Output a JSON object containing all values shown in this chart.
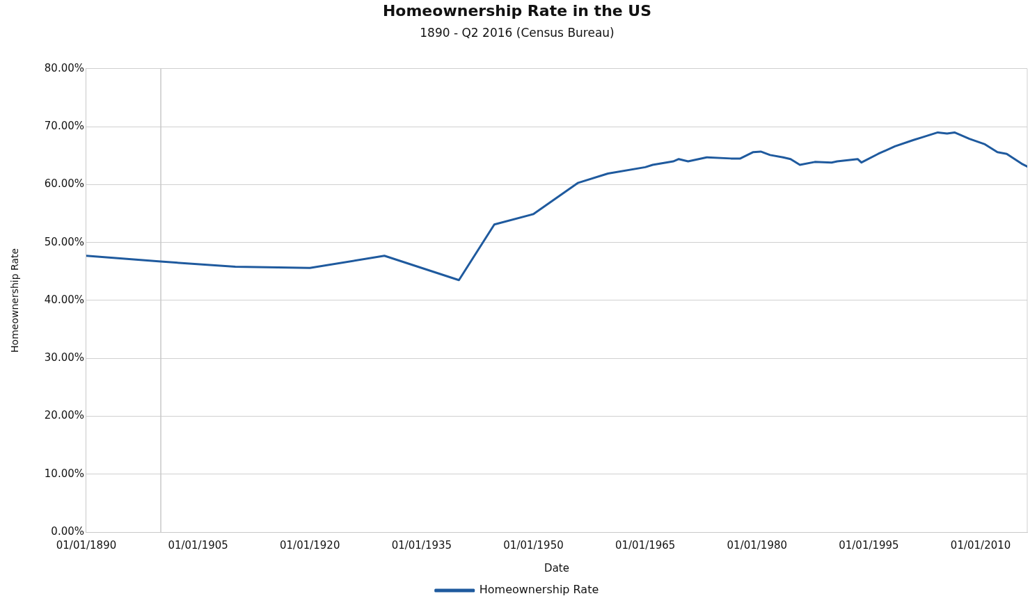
{
  "chart_data": {
    "type": "line",
    "title": "Homeownership Rate in the US",
    "subtitle": "1890 - Q2 2016 (Census Bureau)",
    "xlabel": "Date",
    "ylabel": "Homeownership Rate",
    "x": [
      "1890-01-01",
      "1900-01-01",
      "1910-01-01",
      "1920-01-01",
      "1930-01-01",
      "1940-01-01",
      "1944-10-01",
      "1950-01-01",
      "1956-01-01",
      "1960-01-01",
      "1965-01-01",
      "1966-01-01",
      "1968-10-01",
      "1969-07-01",
      "1970-10-01",
      "1973-04-01",
      "1976-07-01",
      "1977-10-01",
      "1979-07-01",
      "1980-07-01",
      "1981-10-01",
      "1983-07-01",
      "1984-07-01",
      "1985-10-01",
      "1987-10-01",
      "1990-01-01",
      "1990-10-01",
      "1993-07-01",
      "1994-01-01",
      "1996-04-01",
      "1998-07-01",
      "2001-01-01",
      "2002-04-01",
      "2004-04-01",
      "2005-07-01",
      "2006-07-01",
      "2008-07-01",
      "2010-07-01",
      "2012-04-01",
      "2013-07-01",
      "2015-07-01",
      "2016-04-01"
    ],
    "series": [
      {
        "name": "Homeownership Rate",
        "color": "#1f5a9e",
        "values": [
          47.7,
          46.7,
          45.8,
          45.6,
          47.7,
          43.5,
          53.1,
          54.9,
          60.3,
          61.9,
          63.0,
          63.4,
          64.0,
          64.4,
          64.0,
          64.7,
          64.5,
          64.5,
          65.6,
          65.7,
          65.1,
          64.7,
          64.4,
          63.4,
          63.9,
          63.8,
          64.0,
          64.4,
          63.8,
          65.3,
          66.6,
          67.7,
          68.2,
          69.0,
          68.8,
          69.0,
          67.9,
          67.0,
          65.6,
          65.3,
          63.6,
          63.1
        ]
      }
    ],
    "xlim": [
      "1890-01-01",
      "2016-04-01"
    ],
    "xticks": [
      {
        "value": "1890-01-01",
        "label": "01/01/1890"
      },
      {
        "value": "1905-01-01",
        "label": "01/01/1905"
      },
      {
        "value": "1920-01-01",
        "label": "01/01/1920"
      },
      {
        "value": "1935-01-01",
        "label": "01/01/1935"
      },
      {
        "value": "1950-01-01",
        "label": "01/01/1950"
      },
      {
        "value": "1965-01-01",
        "label": "01/01/1965"
      },
      {
        "value": "1980-01-01",
        "label": "01/01/1980"
      },
      {
        "value": "1995-01-01",
        "label": "01/01/1995"
      },
      {
        "value": "2010-01-01",
        "label": "01/01/2010"
      }
    ],
    "ylim": [
      0,
      80
    ],
    "yticks": [
      {
        "value": 0,
        "label": "0.00%"
      },
      {
        "value": 10,
        "label": "10.00%"
      },
      {
        "value": 20,
        "label": "20.00%"
      },
      {
        "value": 30,
        "label": "30.00%"
      },
      {
        "value": 40,
        "label": "40.00%"
      },
      {
        "value": 50,
        "label": "50.00%"
      },
      {
        "value": 60,
        "label": "60.00%"
      },
      {
        "value": 70,
        "label": "70.00%"
      },
      {
        "value": 80,
        "label": "80.00%"
      }
    ],
    "ref_lines": [
      {
        "axis": "x",
        "value": "1900-01-01",
        "color": "#c8c8c8"
      }
    ],
    "grid": "y",
    "legend": "bottom",
    "marker": "none",
    "line_style": "solid"
  }
}
